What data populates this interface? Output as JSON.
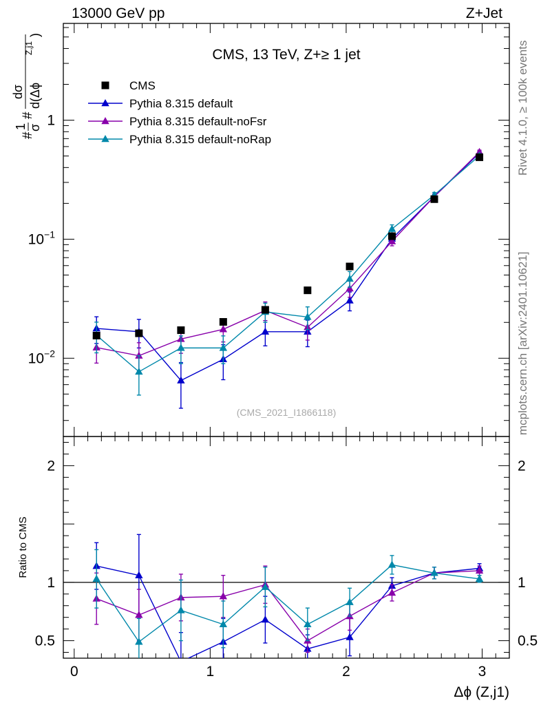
{
  "header": {
    "left": "13000 GeV pp",
    "right": "Z+Jet",
    "side_top": "Rivet 4.1.0, ≥ 100k events",
    "side_bottom": "mcplots.cern.ch [arXiv:2401.10621]"
  },
  "chart_data": {
    "type": "line",
    "title": "CMS, 13 TeV, Z+≥ 1 jet",
    "watermark": "(CMS_2021_I1866118)",
    "xlabel": "Δϕ (Z,j1)",
    "ylabel": "#frac{1}{σ} #frac{dσ}{d(Δϕ^{Z,j1})}",
    "ratio_ylabel": "Ratio to CMS",
    "xlim": [
      -0.08,
      3.2
    ],
    "ylim": [
      0.0022,
      6.5
    ],
    "ratio_ylim": [
      0.35,
      2.25
    ],
    "yscale": "log",
    "x_ticks": [
      "0",
      "1",
      "2",
      "3"
    ],
    "y_ticks": [
      "10",
      "1",
      "10"
    ],
    "y_tick_exponents": [
      "−2",
      "",
      "−1"
    ],
    "ratio_ticks": [
      "0.5",
      "1",
      "2"
    ],
    "legend_position": "top-left",
    "x": [
      0.164,
      0.476,
      0.785,
      1.096,
      1.405,
      1.716,
      2.026,
      2.337,
      2.648,
      2.98
    ],
    "data": {
      "name": "CMS",
      "color": "#000000",
      "values": [
        0.0155,
        0.0162,
        0.0172,
        0.0202,
        0.0255,
        0.0372,
        0.059,
        0.106,
        0.217,
        0.488
      ]
    },
    "series": [
      {
        "name": "Pythia 8.315 default",
        "color": "#0000cc",
        "values": [
          0.0178,
          0.0167,
          0.0065,
          0.0098,
          0.0167,
          0.0167,
          0.0305,
          0.101,
          0.228,
          0.53
        ],
        "errors": [
          0.0045,
          0.0045,
          0.0027,
          0.0032,
          0.004,
          0.0042,
          0.0055,
          0.008,
          0.012,
          0.02
        ],
        "ratio": [
          1.14,
          1.06,
          0.32,
          0.49,
          0.68,
          0.43,
          0.53,
          0.97,
          1.08,
          1.12
        ],
        "ratio_errors": [
          0.2,
          0.35,
          0.25,
          0.2,
          0.2,
          0.12,
          0.16,
          0.07,
          0.05,
          0.04
        ]
      },
      {
        "name": "Pythia 8.315 default-noFsr",
        "color": "#8800aa",
        "values": [
          0.0123,
          0.0105,
          0.0145,
          0.0175,
          0.0252,
          0.0182,
          0.0385,
          0.096,
          0.228,
          0.54
        ],
        "errors": [
          0.0032,
          0.003,
          0.0035,
          0.0038,
          0.0045,
          0.004,
          0.006,
          0.008,
          0.012,
          0.02
        ],
        "ratio": [
          0.86,
          0.72,
          0.87,
          0.88,
          0.98,
          0.5,
          0.71,
          0.91,
          1.08,
          1.1
        ],
        "ratio_errors": [
          0.22,
          0.22,
          0.2,
          0.18,
          0.16,
          0.1,
          0.12,
          0.07,
          0.05,
          0.04
        ]
      },
      {
        "name": "Pythia 8.315 default-noRap",
        "color": "#0088aa",
        "values": [
          0.0156,
          0.0077,
          0.0122,
          0.0122,
          0.0245,
          0.0222,
          0.0465,
          0.122,
          0.235,
          0.503
        ],
        "errors": [
          0.0045,
          0.0028,
          0.0032,
          0.0032,
          0.0045,
          0.0048,
          0.007,
          0.01,
          0.012,
          0.02
        ],
        "ratio": [
          1.03,
          0.49,
          0.76,
          0.64,
          0.96,
          0.64,
          0.83,
          1.15,
          1.08,
          1.03
        ],
        "ratio_errors": [
          0.25,
          0.2,
          0.26,
          0.2,
          0.17,
          0.14,
          0.12,
          0.08,
          0.05,
          0.03
        ]
      }
    ]
  }
}
